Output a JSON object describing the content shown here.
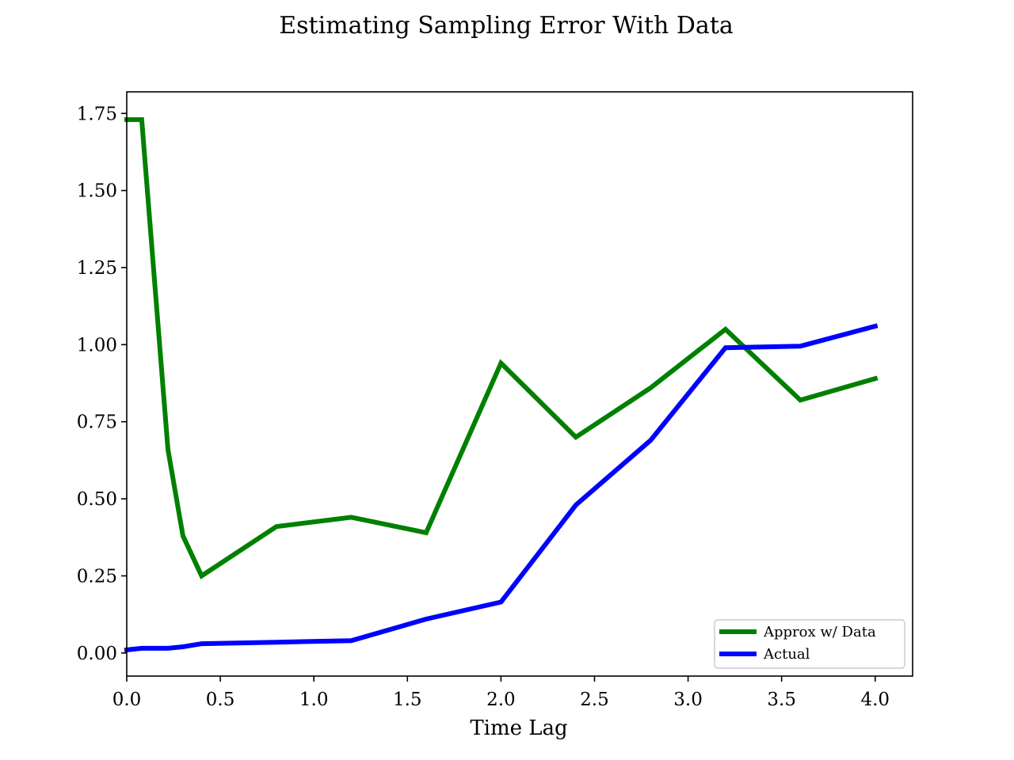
{
  "chart_data": {
    "type": "line",
    "title": "Estimating Sampling Error With Data",
    "xlabel": "Time Lag",
    "ylabel": "",
    "xlim": [
      0.0,
      4.2
    ],
    "ylim": [
      -0.075,
      1.82
    ],
    "xticks": [
      0.0,
      0.5,
      1.0,
      1.5,
      2.0,
      2.5,
      3.0,
      3.5,
      4.0
    ],
    "xtick_labels": [
      "0.0",
      "0.5",
      "1.0",
      "1.5",
      "2.0",
      "2.5",
      "3.0",
      "3.5",
      "4.0"
    ],
    "yticks": [
      0.0,
      0.25,
      0.5,
      0.75,
      1.0,
      1.25,
      1.5,
      1.75
    ],
    "ytick_labels": [
      "0.00",
      "0.25",
      "0.50",
      "0.75",
      "1.00",
      "1.25",
      "1.50",
      "1.75"
    ],
    "grid": false,
    "legend_position": "bottom-right",
    "series": [
      {
        "name": "Approx w/ Data",
        "color": "#008000",
        "x": [
          0.0,
          0.08,
          0.22,
          0.3,
          0.4,
          0.8,
          1.2,
          1.6,
          2.0,
          2.4,
          2.8,
          3.2,
          3.6,
          4.0
        ],
        "y": [
          1.73,
          1.73,
          0.66,
          0.38,
          0.25,
          0.41,
          0.44,
          0.39,
          0.94,
          0.7,
          0.86,
          1.05,
          0.82,
          0.89
        ]
      },
      {
        "name": "Actual",
        "color": "#0000ff",
        "x": [
          0.0,
          0.08,
          0.22,
          0.3,
          0.4,
          0.8,
          1.2,
          1.6,
          2.0,
          2.4,
          2.8,
          3.2,
          3.6,
          4.0
        ],
        "y": [
          0.01,
          0.015,
          0.015,
          0.02,
          0.03,
          0.035,
          0.04,
          0.11,
          0.165,
          0.48,
          0.69,
          0.99,
          0.995,
          1.06
        ]
      }
    ]
  }
}
